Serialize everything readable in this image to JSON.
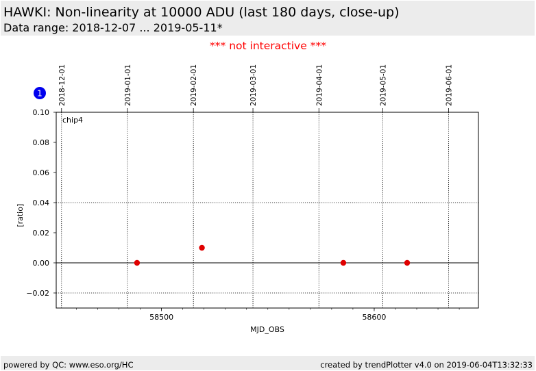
{
  "header": {
    "title": "HAWKI: Non-linearity at 10000 ADU (last 180 days, close-up)",
    "subtitle": "Data range: 2018-12-07 ... 2019-05-11*"
  },
  "notice": "*** not interactive ***",
  "badge": "1",
  "footer": {
    "left": "powered by QC: www.eso.org/HC",
    "right": "created by trendPlotter v4.0 on 2019-06-04T13:32:33"
  },
  "colors": {
    "header_bg": "#ececec",
    "notice": "#ff0000",
    "points": "#e00000",
    "badge": "#0000ee"
  },
  "chart_data": {
    "type": "scatter",
    "xlabel": "MJD_OBS",
    "ylabel": "[ratio]",
    "xlim": [
      58450.5,
      58649.0
    ],
    "ylim": [
      -0.03,
      0.1
    ],
    "x_major_ticks": [
      58500,
      58600
    ],
    "x_minor_step": 10,
    "y_ticks": [
      0.1,
      0.08,
      0.06,
      0.04,
      0.02,
      0.0,
      -0.02
    ],
    "y_tick_labels": [
      "0.10",
      "0.08",
      "0.06",
      "0.04",
      "0.02",
      "0.00",
      "−0.02"
    ],
    "y_grid": [
      0.04,
      -0.02
    ],
    "zero_line": 0,
    "date_ticks": [
      {
        "label": "2018-12-01",
        "mjd": 58453
      },
      {
        "label": "2019-01-01",
        "mjd": 58484
      },
      {
        "label": "2019-02-01",
        "mjd": 58515
      },
      {
        "label": "2019-03-01",
        "mjd": 58543
      },
      {
        "label": "2019-04-01",
        "mjd": 58574
      },
      {
        "label": "2019-05-01",
        "mjd": 58604
      },
      {
        "label": "2019-06-01",
        "mjd": 58635
      }
    ],
    "panel_label": "chip4",
    "series": [
      {
        "points": [
          {
            "x": 58488.5,
            "y": 0.0
          },
          {
            "x": 58519.0,
            "y": 0.01
          },
          {
            "x": 58585.5,
            "y": 0.0
          },
          {
            "x": 58615.5,
            "y": 0.0
          }
        ]
      }
    ]
  }
}
